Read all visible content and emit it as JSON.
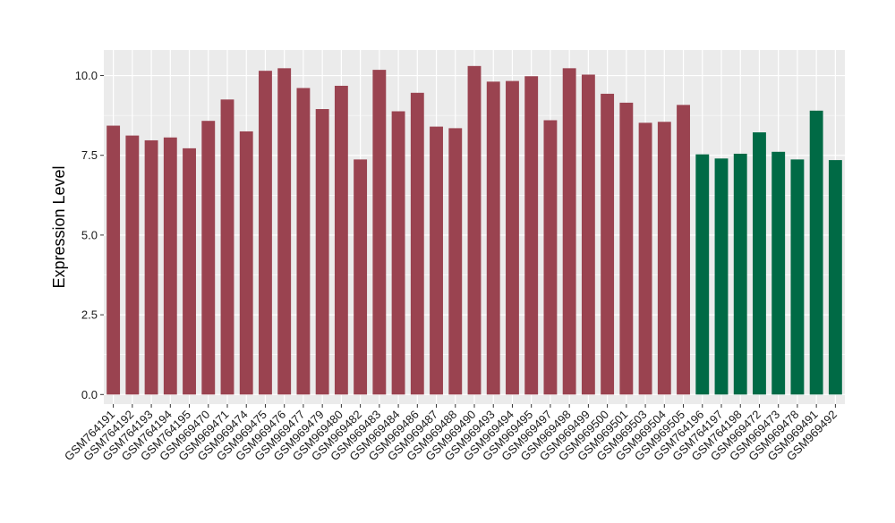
{
  "chart_data": {
    "type": "bar",
    "title": "",
    "xlabel": "",
    "ylabel": "Expression Level",
    "ylim": [
      -0.3,
      10.8
    ],
    "yticks": [
      0.0,
      2.5,
      5.0,
      7.5,
      10.0
    ],
    "ytick_labels": [
      "0.0",
      "2.5",
      "5.0",
      "7.5",
      "10.0"
    ],
    "grid": true,
    "legend": "none",
    "colors": {
      "group1": "#9a4350",
      "group2": "#006a45",
      "panel": "#ebebeb",
      "grid": "#ffffff"
    },
    "categories": [
      "GSM764191",
      "GSM764192",
      "GSM764193",
      "GSM764194",
      "GSM764195",
      "GSM969470",
      "GSM969471",
      "GSM969474",
      "GSM969475",
      "GSM969476",
      "GSM969477",
      "GSM969479",
      "GSM969480",
      "GSM969482",
      "GSM969483",
      "GSM969484",
      "GSM969486",
      "GSM969487",
      "GSM969488",
      "GSM969490",
      "GSM969493",
      "GSM969494",
      "GSM969495",
      "GSM969497",
      "GSM969498",
      "GSM969499",
      "GSM969500",
      "GSM969501",
      "GSM969503",
      "GSM969504",
      "GSM969505",
      "GSM764196",
      "GSM764197",
      "GSM764198",
      "GSM969472",
      "GSM969473",
      "GSM969478",
      "GSM969491",
      "GSM969492"
    ],
    "values": [
      8.43,
      8.12,
      7.97,
      8.06,
      7.72,
      8.58,
      9.25,
      8.25,
      10.15,
      10.23,
      9.61,
      8.95,
      9.68,
      7.37,
      10.18,
      8.88,
      9.46,
      8.4,
      8.35,
      10.3,
      9.81,
      9.83,
      9.98,
      8.6,
      10.23,
      10.03,
      9.43,
      9.15,
      8.52,
      8.55,
      9.08,
      7.53,
      7.4,
      7.55,
      8.22,
      7.61,
      7.37,
      8.9,
      7.35
    ],
    "groups": [
      1,
      1,
      1,
      1,
      1,
      1,
      1,
      1,
      1,
      1,
      1,
      1,
      1,
      1,
      1,
      1,
      1,
      1,
      1,
      1,
      1,
      1,
      1,
      1,
      1,
      1,
      1,
      1,
      1,
      1,
      1,
      2,
      2,
      2,
      2,
      2,
      2,
      2,
      2
    ]
  }
}
